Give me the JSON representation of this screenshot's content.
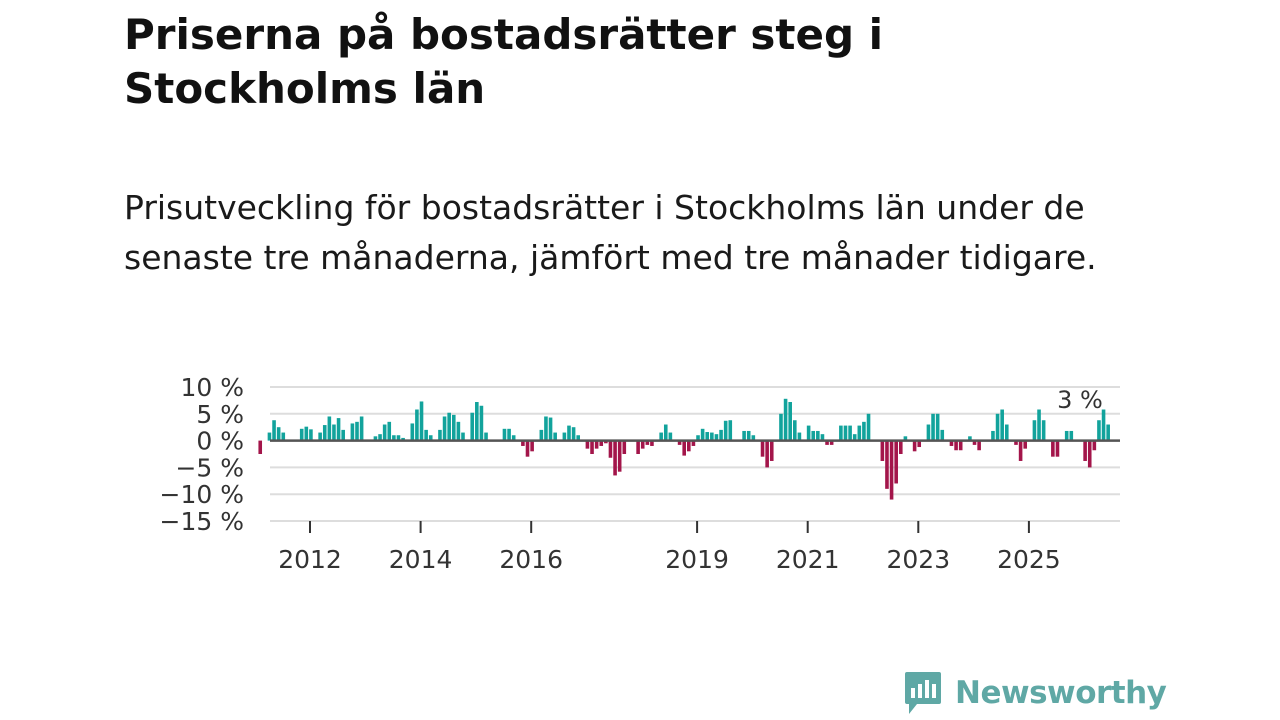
{
  "title": "Priserna på bostadsrätter steg i Stockholms län",
  "subtitle": "Prisutveckling för bostadsrätter i Stockholms län under de senaste tre månaderna, jämfört med tre månader tidigare.",
  "logo_text": "Newsworthy",
  "colors": {
    "positive": "#12a39c",
    "negative": "#a3154a",
    "logo": "#5fa8a5",
    "grid": "#dddddd",
    "zero": "#555555"
  },
  "chart_data": {
    "type": "bar",
    "title": "Priserna på bostadsrätter steg i Stockholms län",
    "ylabel": "",
    "xlabel": "",
    "unit": "%",
    "ylim": [
      -15,
      10
    ],
    "y_ticks": [
      10,
      5,
      0,
      -5,
      -10,
      -15
    ],
    "y_tick_labels": [
      "10 %",
      "5 %",
      "0 %",
      "−5 %",
      "−10 %",
      "−15 %"
    ],
    "x_ticks": [
      2012,
      2014,
      2016,
      2019,
      2021,
      2023,
      2025
    ],
    "x_tick_labels": [
      "2012",
      "2014",
      "2016",
      "2019",
      "2021",
      "2023",
      "2025"
    ],
    "start_year": 2011.1,
    "months_per_bar": 1,
    "annotation": "3 %",
    "values": [
      -2.5,
      0,
      1.5,
      3.8,
      2.5,
      1.5,
      0,
      0,
      0,
      2.2,
      2.6,
      2.1,
      0,
      1.5,
      2.9,
      4.5,
      3.0,
      4.2,
      2.0,
      0,
      3.2,
      3.5,
      4.5,
      0,
      0,
      0.8,
      1.2,
      3.0,
      3.5,
      1.0,
      1.0,
      0.5,
      0,
      3.2,
      5.8,
      7.3,
      2.0,
      1.0,
      0,
      2.0,
      4.5,
      5.2,
      4.8,
      3.5,
      1.5,
      0,
      5.2,
      7.2,
      6.5,
      1.5,
      0,
      0,
      0,
      2.2,
      2.2,
      1.0,
      0,
      -1.0,
      -3.0,
      -2.0,
      0,
      2.0,
      4.5,
      4.3,
      1.5,
      0,
      1.5,
      2.8,
      2.5,
      1.0,
      0,
      -1.5,
      -2.5,
      -1.5,
      -1.0,
      -0.5,
      -3.2,
      -6.5,
      -5.8,
      -2.5,
      0,
      0,
      -2.5,
      -1.5,
      -0.8,
      -1.0,
      0,
      1.5,
      3.0,
      1.5,
      0,
      -0.8,
      -2.8,
      -2.0,
      -1.0,
      1.0,
      2.2,
      1.6,
      1.5,
      1.2,
      2.0,
      3.7,
      3.8,
      0,
      0,
      1.8,
      1.8,
      1.0,
      0,
      -3.0,
      -5.0,
      -3.8,
      0,
      5.0,
      7.8,
      7.2,
      3.8,
      1.5,
      0,
      2.8,
      1.8,
      1.8,
      1.2,
      -0.8,
      -0.8,
      0,
      2.8,
      2.8,
      2.8,
      1.2,
      2.8,
      3.5,
      5.0,
      0,
      0,
      -3.8,
      -9.0,
      -11.0,
      -8.0,
      -2.5,
      0.8,
      0,
      -2.0,
      -1.2,
      0,
      3.0,
      5.0,
      5.0,
      2.0,
      0,
      -1.0,
      -1.8,
      -1.8,
      0,
      0.8,
      -0.8,
      -1.8,
      0,
      0,
      1.8,
      5.0,
      5.8,
      3.0,
      0,
      -0.8,
      -3.8,
      -1.5,
      0,
      3.8,
      5.8,
      3.8,
      0,
      -3.0,
      -3.0,
      0,
      1.8,
      1.8,
      0,
      0,
      -3.8,
      -5.0,
      -1.8,
      3.8,
      5.8,
      3.0
    ]
  }
}
